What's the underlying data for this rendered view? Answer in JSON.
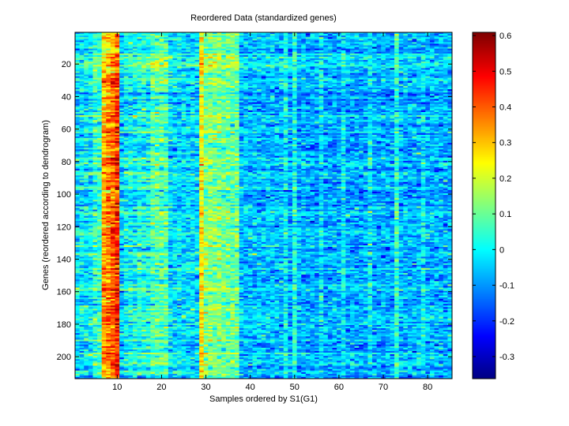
{
  "chart_data": {
    "type": "heatmap",
    "title": "Reordered Data (standardized genes)",
    "xlabel": "Samples ordered by S1(G1)",
    "ylabel": "Genes (reordered according to dendrogram)",
    "n_rows": 213,
    "n_cols": 85,
    "xlim": [
      0.5,
      85.5
    ],
    "ylim": [
      0.5,
      213.5
    ],
    "xticks": [
      10,
      20,
      30,
      40,
      50,
      60,
      70,
      80
    ],
    "yticks": [
      20,
      40,
      60,
      80,
      100,
      120,
      140,
      160,
      180,
      200
    ],
    "colormap": "jet",
    "clim": [
      -0.362,
      0.609
    ],
    "colorbar_ticks": [
      0.6,
      0.5,
      0.4,
      0.3,
      0.2,
      0.1,
      0,
      -0.1,
      -0.2,
      -0.3
    ],
    "column_means": [
      -0.02,
      -0.02,
      -0.02,
      -0.02,
      0.05,
      0.05,
      0.33,
      0.36,
      0.4,
      0.45,
      -0.05,
      0.0,
      0.0,
      0.0,
      0.02,
      0.02,
      0.02,
      0.08,
      0.08,
      0.08,
      0.08,
      -0.03,
      -0.03,
      -0.03,
      -0.03,
      -0.03,
      -0.03,
      -0.03,
      0.25,
      0.12,
      0.12,
      0.12,
      0.12,
      0.1,
      0.1,
      0.1,
      0.1,
      -0.06,
      -0.06,
      -0.06,
      -0.06,
      -0.06,
      -0.06,
      -0.06,
      -0.06,
      -0.06,
      -0.06,
      0.0,
      -0.08,
      0.02,
      -0.08,
      -0.08,
      -0.08,
      -0.08,
      -0.08,
      -0.02,
      -0.08,
      -0.08,
      -0.08,
      -0.08,
      -0.02,
      -0.08,
      -0.08,
      -0.08,
      -0.08,
      -0.08,
      -0.02,
      -0.08,
      -0.08,
      -0.08,
      -0.08,
      -0.08,
      0.05,
      -0.07,
      -0.07,
      -0.07,
      -0.07,
      -0.07,
      -0.02,
      -0.07,
      -0.07,
      -0.07,
      -0.07,
      -0.07,
      -0.07
    ],
    "noise_sd": 0.06
  }
}
